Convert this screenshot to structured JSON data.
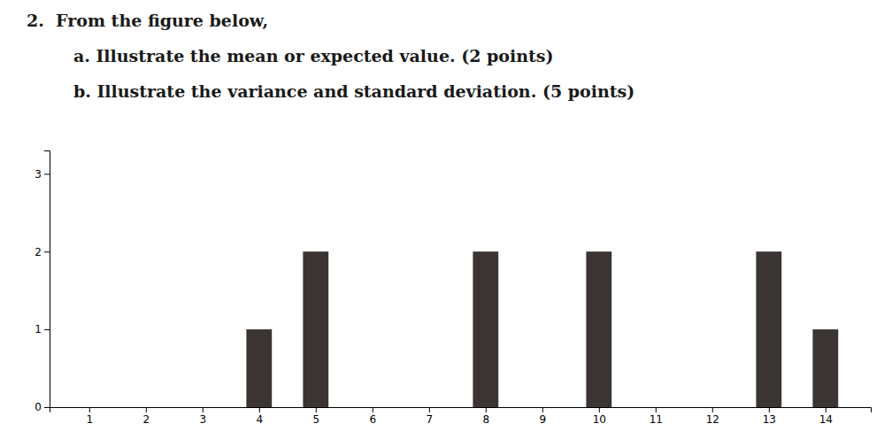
{
  "chart_data": {
    "type": "bar",
    "title": "2.  From the figure below,",
    "annotations": [
      "        a. Illustrate the mean or expected value. (2 points)",
      "        b. Illustrate the variance and standard deviation. (5 points)"
    ],
    "x": [
      4,
      5,
      8,
      10,
      13,
      14
    ],
    "values": [
      1,
      2,
      2,
      2,
      2,
      1
    ],
    "color": "#3a3532",
    "xlim": [
      0.3,
      14.8
    ],
    "xticks": [
      1,
      2,
      3,
      4,
      5,
      6,
      7,
      8,
      9,
      10,
      11,
      12,
      13,
      14
    ],
    "ylim": [
      0,
      3.3
    ],
    "yticks": [
      0,
      1,
      2,
      3
    ],
    "grid": false
  }
}
